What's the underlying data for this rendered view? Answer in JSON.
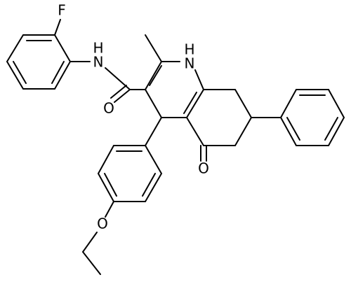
{
  "atoms": [
    {
      "label": "F"
    },
    {
      "label": "H"
    },
    {
      "label": "N"
    },
    {
      "label": "O"
    },
    {
      "label": "H"
    },
    {
      "label": "N"
    },
    {
      "label": "O"
    },
    {
      "label": "O"
    }
  ]
}
